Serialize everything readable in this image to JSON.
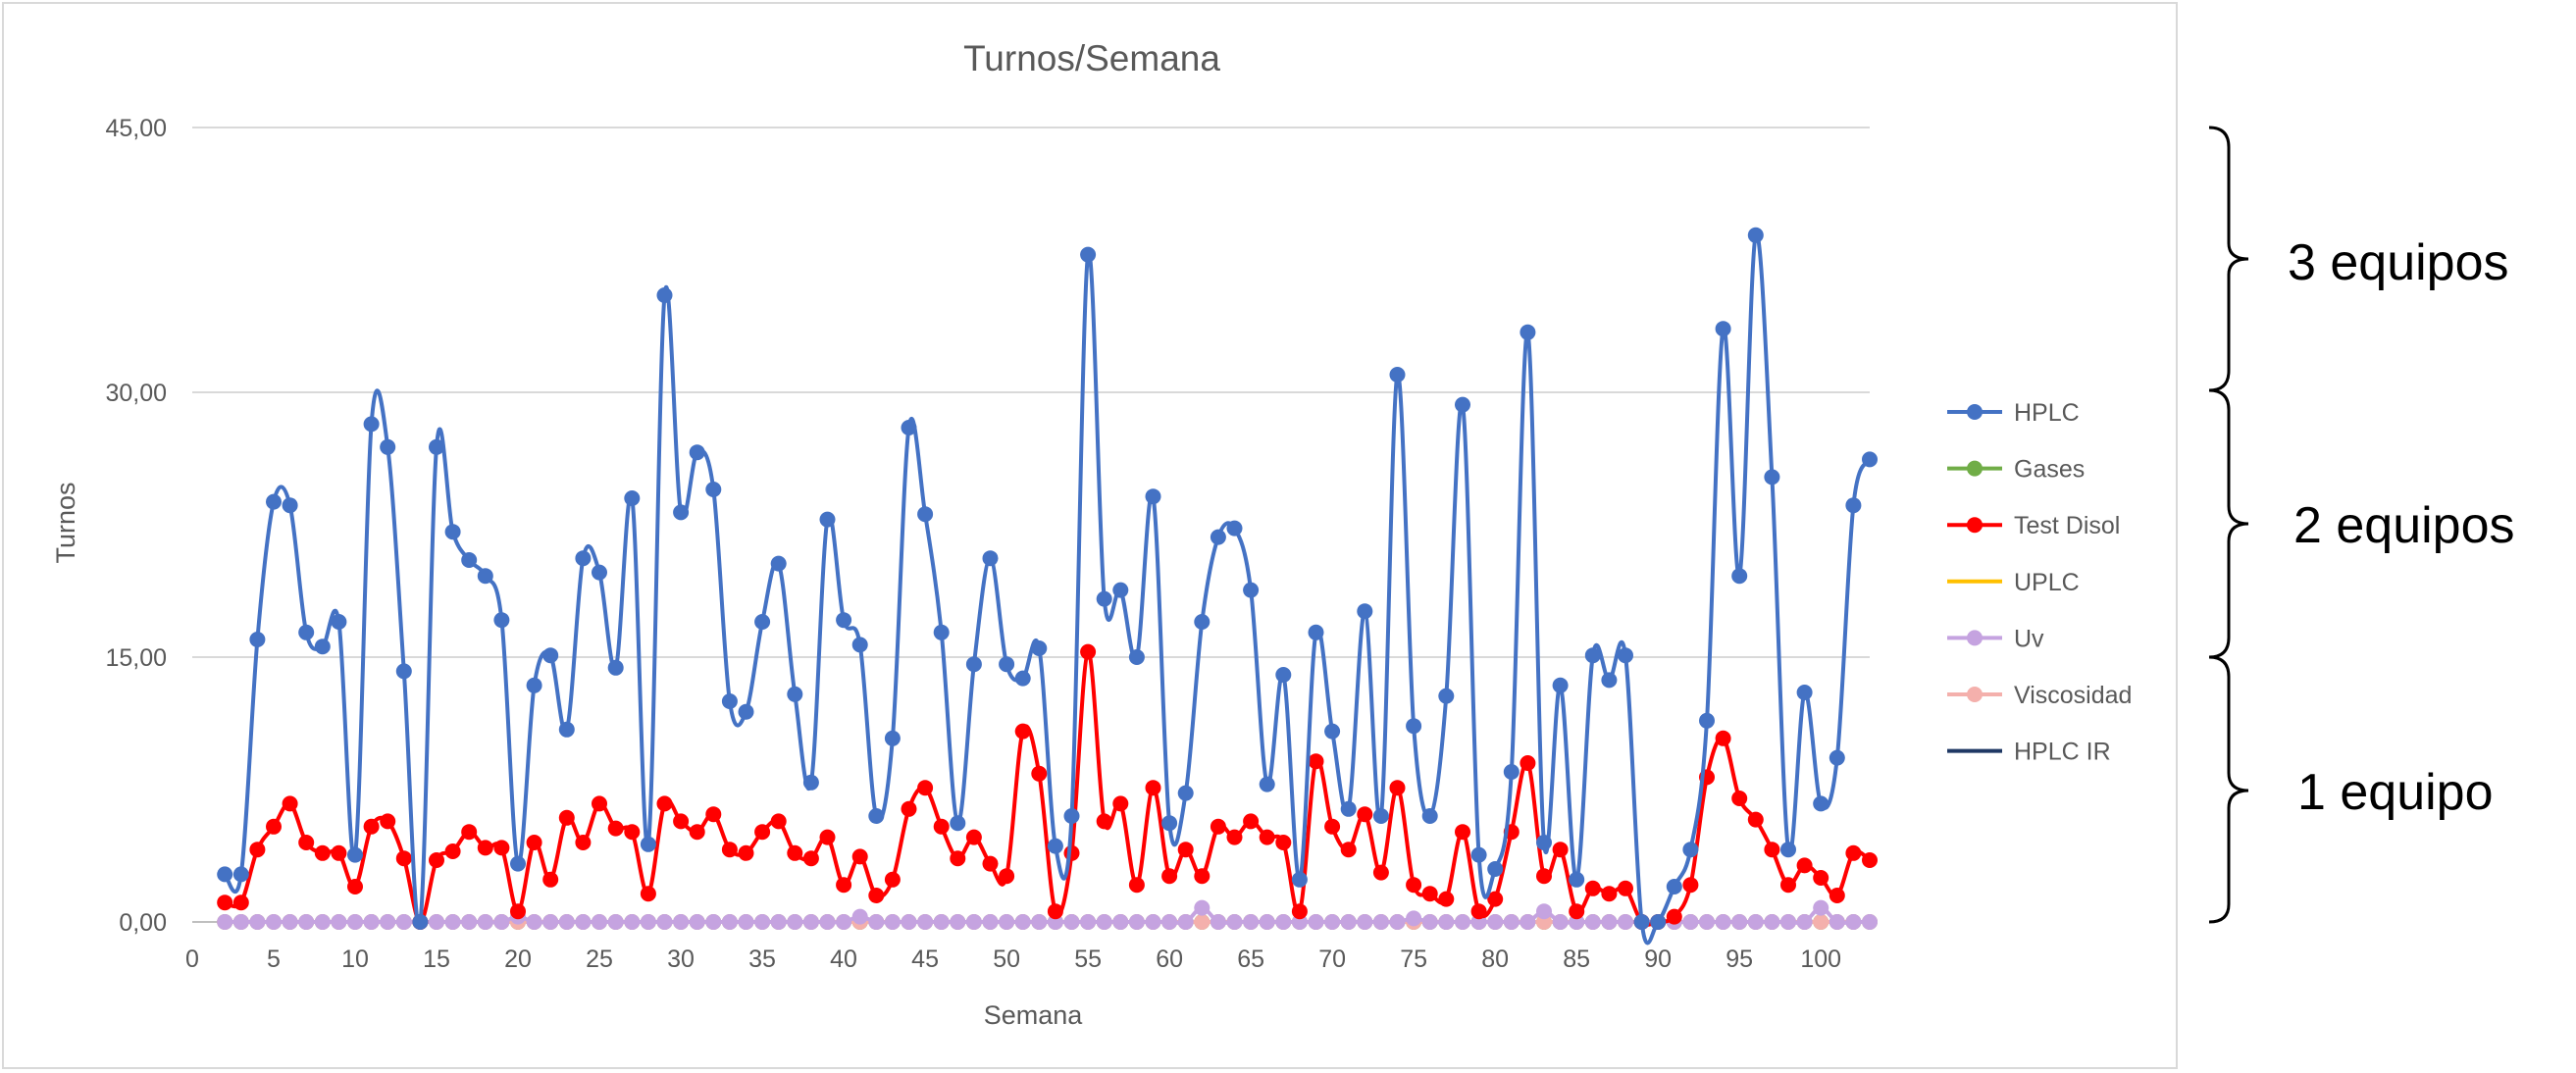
{
  "chart_data": {
    "type": "line",
    "title": "Turnos/Semana",
    "xlabel": "Semana",
    "ylabel": "Turnos",
    "xlim": [
      0,
      103
    ],
    "ylim": [
      0,
      45
    ],
    "xticks": [
      0,
      5,
      10,
      15,
      20,
      25,
      30,
      35,
      40,
      45,
      50,
      55,
      60,
      65,
      70,
      75,
      80,
      85,
      90,
      95,
      100
    ],
    "yticks": [
      "0,00",
      "15,00",
      "30,00",
      "45,00"
    ],
    "ytick_values": [
      0,
      15,
      30,
      45
    ],
    "grid": "horizontal",
    "legend_position": "right",
    "series": [
      {
        "name": "HPLC",
        "color": "#4472c4",
        "values": [
          2.7,
          2.7,
          16,
          23.8,
          23.6,
          16.4,
          15.6,
          17,
          3.8,
          28.2,
          26.9,
          14.2,
          0,
          26.9,
          22.1,
          20.5,
          19.6,
          17.1,
          3.3,
          13.4,
          15.1,
          10.9,
          20.6,
          19.8,
          14.4,
          24,
          4.4,
          35.5,
          23.2,
          26.6,
          24.5,
          12.5,
          11.9,
          17,
          20.3,
          12.9,
          7.9,
          22.8,
          17.1,
          15.7,
          6,
          10.4,
          28,
          23.1,
          16.4,
          5.6,
          14.6,
          20.6,
          14.6,
          13.8,
          15.5,
          4.3,
          6,
          37.8,
          18.3,
          18.8,
          15,
          24.1,
          5.6,
          7.3,
          17,
          21.8,
          22.3,
          18.8,
          7.8,
          14,
          2.4,
          16.4,
          10.8,
          6.4,
          17.6,
          6,
          31,
          11.1,
          6,
          12.8,
          29.3,
          3.8,
          3,
          8.5,
          33.4,
          4.5,
          13.4,
          2.4,
          15.1,
          13.7,
          15.1,
          0,
          0,
          2,
          4.1,
          11.4,
          33.6,
          19.6,
          38.9,
          25.2,
          4.1,
          13,
          6.7,
          9.3,
          23.6,
          26.2
        ]
      },
      {
        "name": "Gases",
        "color": "#70ad47",
        "values": [
          0,
          0,
          0,
          0,
          0,
          0,
          0,
          0,
          0,
          0,
          0,
          0,
          0,
          0,
          0,
          0,
          0,
          0,
          0,
          0,
          0,
          0,
          0,
          0,
          0,
          0,
          0,
          0,
          0,
          0,
          0,
          0,
          0,
          0,
          0,
          0,
          0,
          0,
          0,
          0,
          0,
          0,
          0,
          0,
          0,
          0,
          0,
          0,
          0,
          0,
          0,
          0,
          0,
          0,
          0,
          0,
          0,
          0,
          0,
          0,
          0,
          0,
          0,
          0,
          0,
          0,
          0,
          0,
          0,
          0,
          0,
          0,
          0,
          0,
          0,
          0,
          0,
          0,
          0,
          0,
          0,
          0,
          0,
          0,
          0,
          0,
          0,
          0,
          0,
          0,
          0,
          0,
          0,
          0,
          0,
          0,
          0,
          0,
          0,
          0,
          0,
          0
        ]
      },
      {
        "name": "Test Disol",
        "color": "#ff0000",
        "values": [
          1.1,
          1.1,
          4.1,
          5.4,
          6.7,
          4.5,
          3.9,
          3.9,
          2,
          5.4,
          5.7,
          3.6,
          0,
          3.5,
          4,
          5.1,
          4.2,
          4.2,
          0.6,
          4.5,
          2.4,
          5.9,
          4.5,
          6.7,
          5.3,
          5.1,
          1.6,
          6.7,
          5.7,
          5.1,
          6.1,
          4.1,
          3.9,
          5.1,
          5.7,
          3.9,
          3.6,
          4.8,
          2.1,
          3.7,
          1.5,
          2.4,
          6.4,
          7.6,
          5.4,
          3.6,
          4.8,
          3.3,
          2.6,
          10.8,
          8.4,
          0.6,
          3.9,
          15.3,
          5.7,
          6.7,
          2.1,
          7.6,
          2.6,
          4.1,
          2.6,
          5.4,
          4.8,
          5.7,
          4.8,
          4.5,
          0.6,
          9.1,
          5.4,
          4.1,
          6.1,
          2.8,
          7.6,
          2.1,
          1.6,
          1.3,
          5.1,
          0.6,
          1.3,
          5.1,
          9,
          2.6,
          4.1,
          0.6,
          1.9,
          1.6,
          1.9,
          0,
          0,
          0.3,
          2.1,
          8.2,
          10.4,
          7,
          5.8,
          4.1,
          2.1,
          3.2,
          2.5,
          1.5,
          3.9,
          3.5
        ]
      },
      {
        "name": "UPLC",
        "color": "#ffc000",
        "values": [
          0,
          0,
          0,
          0,
          0,
          0,
          0,
          0,
          0,
          0,
          0,
          0,
          0,
          0,
          0,
          0,
          0,
          0,
          0,
          0,
          0,
          0,
          0,
          0,
          0,
          0,
          0,
          0,
          0,
          0,
          0,
          0,
          0,
          0,
          0,
          0,
          0,
          0,
          0,
          0,
          0,
          0,
          0,
          0,
          0,
          0,
          0,
          0,
          0,
          0,
          0,
          0,
          0,
          0,
          0,
          0,
          0,
          0,
          0,
          0,
          0,
          0,
          0,
          0,
          0,
          0,
          0,
          0,
          0,
          0,
          0,
          0,
          0,
          0,
          0,
          0,
          0,
          0,
          0,
          0,
          0,
          0,
          0,
          0,
          0,
          0,
          0,
          0,
          0,
          0,
          0,
          0,
          0,
          0,
          0,
          0,
          0,
          0,
          0,
          0,
          0,
          0
        ]
      },
      {
        "name": "Uv",
        "color": "#c5a3e0",
        "values": [
          0,
          0,
          0,
          0,
          0,
          0,
          0,
          0,
          0,
          0,
          0,
          0,
          0,
          0,
          0,
          0,
          0,
          0,
          0.3,
          0,
          0,
          0,
          0,
          0,
          0,
          0,
          0,
          0,
          0,
          0,
          0,
          0,
          0,
          0,
          0,
          0,
          0,
          0,
          0,
          0.3,
          0,
          0,
          0,
          0,
          0,
          0,
          0,
          0,
          0,
          0,
          0,
          0,
          0,
          0,
          0,
          0,
          0,
          0,
          0,
          0,
          0.8,
          0,
          0,
          0,
          0,
          0,
          0,
          0,
          0,
          0,
          0,
          0,
          0,
          0.2,
          0,
          0,
          0,
          0,
          0,
          0,
          0,
          0.6,
          0,
          0,
          0,
          0,
          0,
          0,
          0,
          0,
          0,
          0,
          0,
          0,
          0,
          0,
          0,
          0,
          0.8,
          0,
          0,
          0
        ]
      },
      {
        "name": "Viscosidad",
        "color": "#f4b0ac",
        "values": [
          0,
          0,
          0,
          0,
          0,
          0,
          0,
          0,
          0,
          0,
          0,
          0,
          0,
          0,
          0,
          0,
          0,
          0,
          0,
          0,
          0,
          0,
          0,
          0,
          0,
          0,
          0,
          0,
          0,
          0,
          0,
          0,
          0,
          0,
          0,
          0,
          0,
          0,
          0,
          0,
          0,
          0,
          0,
          0,
          0,
          0,
          0,
          0,
          0,
          0,
          0,
          0,
          0,
          0,
          0,
          0,
          0,
          0,
          0,
          0,
          0,
          0,
          0,
          0,
          0,
          0,
          0,
          0,
          0,
          0,
          0,
          0,
          0,
          0,
          0,
          0,
          0,
          0,
          0,
          0,
          0,
          0,
          0,
          0,
          0,
          0,
          0,
          0,
          0,
          0,
          0,
          0,
          0,
          0,
          0,
          0,
          0,
          0,
          0,
          0,
          0,
          0
        ]
      },
      {
        "name": "HPLC IR",
        "color": "#1f3864",
        "values": [
          0,
          0,
          0,
          0,
          0,
          0,
          0,
          0,
          0,
          0,
          0,
          0,
          0,
          0,
          0,
          0,
          0,
          0,
          0,
          0,
          0,
          0,
          0,
          0,
          0,
          0,
          0,
          0,
          0,
          0,
          0,
          0,
          0,
          0,
          0,
          0,
          0,
          0,
          0,
          0,
          0,
          0,
          0,
          0,
          0,
          0,
          0,
          0,
          0,
          0,
          0,
          0,
          0,
          0,
          0,
          0,
          0,
          0,
          0,
          0,
          0,
          0,
          0,
          0,
          0,
          0,
          0,
          0,
          0,
          0,
          0,
          0,
          0,
          0,
          0,
          0,
          0,
          0,
          0,
          0,
          0,
          0,
          0,
          0,
          0,
          0,
          0,
          0,
          0,
          0,
          0,
          0,
          0,
          0,
          0,
          0,
          0,
          0,
          0,
          0,
          0,
          0
        ]
      }
    ]
  },
  "annotations": {
    "brace_3": "3 equipos",
    "brace_2": "2 equipos",
    "brace_1": "1 equipo"
  }
}
